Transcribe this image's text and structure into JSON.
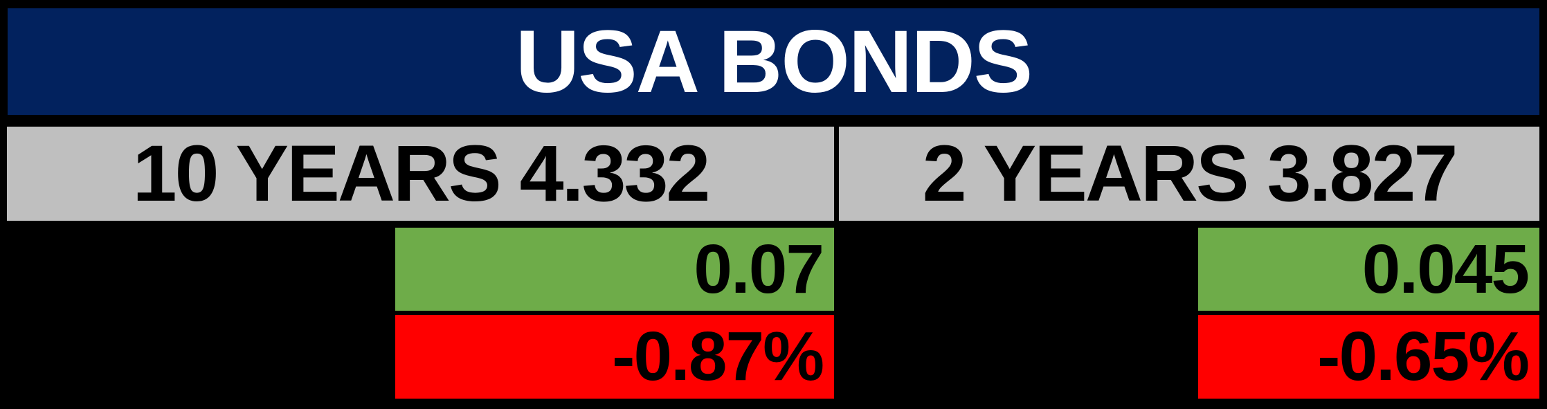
{
  "widget": {
    "title": "USA BONDS"
  },
  "colors": {
    "background": "#000000",
    "header": "#02225E",
    "title_text": "#FFFFFF",
    "label_bg": "#BFBFBF",
    "cell_text": "#000000",
    "positive": "#6EAC49",
    "negative": "#FF0000"
  },
  "sections": [
    {
      "maturity": "10 YEARS",
      "yield": "4.332",
      "label": "10 YEARS 4.332",
      "change": "0.07",
      "change_pct": "-0.87%"
    },
    {
      "maturity": "2 YEARS",
      "yield": "3.827",
      "label": "2 YEARS 3.827",
      "change": "0.045",
      "change_pct": "-0.65%"
    }
  ]
}
